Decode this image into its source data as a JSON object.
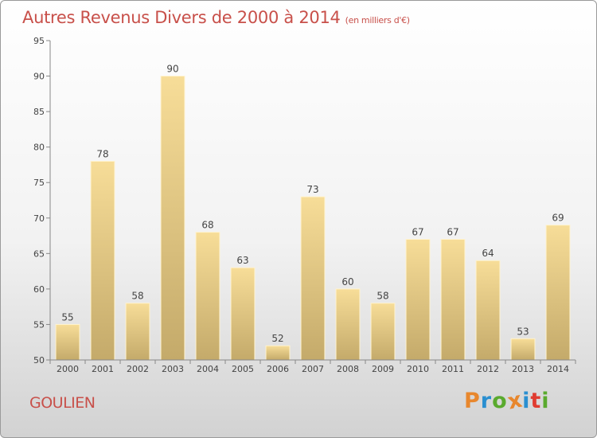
{
  "header": {
    "title": "Autres Revenus Divers de 2000 à 2014",
    "subtitle": "(en milliers d'€)"
  },
  "footer": {
    "commune": "GOULIEN",
    "logo": "Proxiti"
  },
  "colors": {
    "title": "#c8504a",
    "bar_top": "#f7dd98",
    "bar_bottom": "#c4aa6a",
    "logo_letters": [
      "#e8872d",
      "#2a8fd0",
      "#5aaa2e",
      "#e8872d",
      "#2a8fd0",
      "#e03c31",
      "#5aaa2e"
    ]
  },
  "chart_data": {
    "type": "bar",
    "categories": [
      "2000",
      "2001",
      "2002",
      "2003",
      "2004",
      "2005",
      "2006",
      "2007",
      "2008",
      "2009",
      "2010",
      "2011",
      "2012",
      "2013",
      "2014"
    ],
    "values": [
      55,
      78,
      58,
      90,
      68,
      63,
      52,
      73,
      60,
      58,
      67,
      67,
      64,
      53,
      69
    ],
    "ylim": [
      50,
      95
    ],
    "yticks": [
      50,
      55,
      60,
      65,
      70,
      75,
      80,
      85,
      90,
      95
    ],
    "grid": false,
    "legend": "none",
    "data_labels": true
  }
}
